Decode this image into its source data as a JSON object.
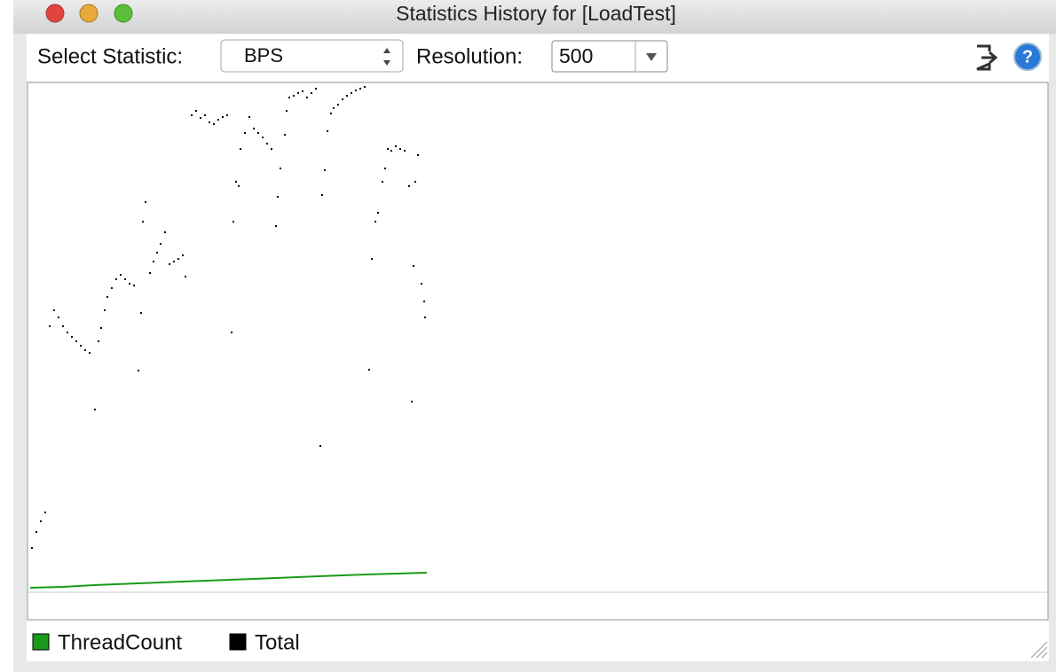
{
  "window": {
    "title": "Statistics History for [LoadTest]"
  },
  "toolbar": {
    "statistic_label": "Select Statistic:",
    "statistic_value": "BPS",
    "resolution_label": "Resolution:",
    "resolution_value": 500
  },
  "chart_data": {
    "type": "scatter-line",
    "xlim": [
      0,
      1147
    ],
    "ylim": [
      0,
      573
    ],
    "series": [
      {
        "name": "ThreadCount",
        "color": "#1a9a1a",
        "style": "line",
        "x": [
          0,
          37,
          72,
          122,
          172,
          225,
          277,
          325,
          379,
          447
        ],
        "values": [
          5,
          6,
          8,
          10,
          12,
          14,
          16,
          18,
          20,
          22
        ]
      },
      {
        "name": "Total",
        "color": "#000000",
        "style": "points",
        "x": [
          2,
          7,
          12,
          17,
          22,
          27,
          32,
          37,
          42,
          47,
          52,
          57,
          62,
          67,
          73,
          77,
          80,
          84,
          87,
          92,
          97,
          102,
          107,
          112,
          117,
          122,
          125,
          127,
          130,
          135,
          139,
          143,
          147,
          152,
          157,
          162,
          167,
          172,
          175,
          182,
          187,
          192,
          197,
          202,
          207,
          212,
          217,
          222,
          227,
          229,
          232,
          235,
          237,
          242,
          247,
          252,
          257,
          262,
          267,
          272,
          277,
          279,
          282,
          287,
          289,
          292,
          297,
          302,
          307,
          312,
          317,
          322,
          327,
          329,
          332,
          335,
          339,
          342,
          347,
          352,
          357,
          362,
          367,
          372,
          377,
          382,
          385,
          389,
          392,
          397,
          400,
          403,
          407,
          412,
          417,
          422,
          427,
          430,
          432,
          434,
          437,
          441,
          444,
          445
        ],
        "values": [
          50,
          68,
          80,
          90,
          300,
          318,
          310,
          300,
          293,
          288,
          283,
          278,
          273,
          270,
          206,
          283,
          298,
          318,
          333,
          343,
          353,
          358,
          353,
          348,
          346,
          250,
          315,
          418,
          440,
          360,
          373,
          383,
          393,
          406,
          370,
          373,
          376,
          380,
          356,
          538,
          543,
          535,
          538,
          530,
          528,
          533,
          536,
          538,
          293,
          418,
          463,
          458,
          500,
          518,
          536,
          523,
          518,
          513,
          506,
          500,
          413,
          446,
          478,
          516,
          543,
          558,
          560,
          563,
          565,
          558,
          563,
          568,
          165,
          448,
          476,
          520,
          540,
          546,
          550,
          556,
          560,
          563,
          566,
          568,
          570,
          251,
          376,
          418,
          428,
          463,
          478,
          500,
          498,
          503,
          500,
          498,
          458,
          215,
          368,
          463,
          493,
          348,
          328,
          310
        ]
      }
    ]
  }
}
